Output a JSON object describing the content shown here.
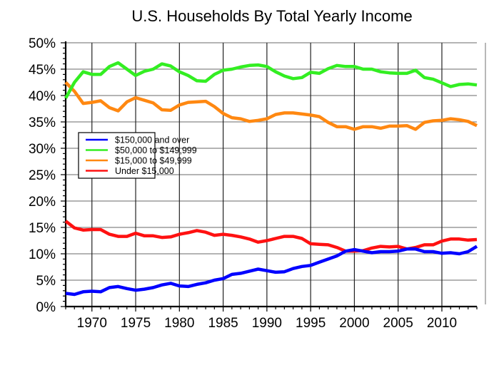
{
  "chart_data": {
    "type": "line",
    "title": "U.S. Households By Total Yearly Income",
    "xlabel": "",
    "ylabel": "",
    "xlim": [
      1967,
      2014
    ],
    "ylim": [
      0,
      50
    ],
    "x_ticks": [
      "1970",
      "1975",
      "1980",
      "1985",
      "1990",
      "1995",
      "2000",
      "2005",
      "2010"
    ],
    "y_ticks": [
      "0%",
      "5%",
      "10%",
      "15%",
      "20%",
      "25%",
      "30%",
      "35%",
      "40%",
      "45%",
      "50%"
    ],
    "grid": true,
    "legend_position": "center-left",
    "x": [
      1967,
      1968,
      1969,
      1970,
      1971,
      1972,
      1973,
      1974,
      1975,
      1976,
      1977,
      1978,
      1979,
      1980,
      1981,
      1982,
      1983,
      1984,
      1985,
      1986,
      1987,
      1988,
      1989,
      1990,
      1991,
      1992,
      1993,
      1994,
      1995,
      1996,
      1997,
      1998,
      1999,
      2000,
      2001,
      2002,
      2003,
      2004,
      2005,
      2006,
      2007,
      2008,
      2009,
      2010,
      2011,
      2012,
      2013,
      2014
    ],
    "series": [
      {
        "name": "$150,000 and over",
        "color": "#0000ff",
        "values": [
          2.5,
          2.3,
          2.8,
          2.9,
          2.8,
          3.6,
          3.8,
          3.4,
          3.1,
          3.3,
          3.6,
          4.1,
          4.4,
          3.9,
          3.8,
          4.2,
          4.5,
          5.0,
          5.3,
          6.1,
          6.3,
          6.7,
          7.1,
          6.8,
          6.5,
          6.6,
          7.2,
          7.6,
          7.8,
          8.4,
          9.0,
          9.6,
          10.5,
          10.8,
          10.5,
          10.2,
          10.4,
          10.4,
          10.5,
          10.9,
          10.9,
          10.4,
          10.4,
          10.1,
          10.2,
          10.0,
          10.4,
          11.4
        ]
      },
      {
        "name": "$50,000 to $149,999",
        "color": "#33ee22",
        "values": [
          39.5,
          42.5,
          44.5,
          44.0,
          44.0,
          45.5,
          46.2,
          45.0,
          43.8,
          44.6,
          45.0,
          46.0,
          45.6,
          44.5,
          43.8,
          42.8,
          42.7,
          44.0,
          44.8,
          45.0,
          45.4,
          45.7,
          45.8,
          45.5,
          44.5,
          43.7,
          43.2,
          43.4,
          44.4,
          44.2,
          45.1,
          45.7,
          45.5,
          45.5,
          45.0,
          45.0,
          44.5,
          44.3,
          44.2,
          44.2,
          44.8,
          43.4,
          43.1,
          42.4,
          41.7,
          42.1,
          42.2,
          42.0
        ]
      },
      {
        "name": "$15,000 to $49,999",
        "color": "#ff8811",
        "values": [
          42.5,
          40.8,
          38.5,
          38.7,
          39.0,
          37.7,
          37.1,
          38.8,
          39.6,
          39.1,
          38.6,
          37.3,
          37.2,
          38.2,
          38.7,
          38.8,
          38.9,
          37.9,
          36.6,
          35.8,
          35.6,
          35.1,
          35.3,
          35.6,
          36.4,
          36.7,
          36.7,
          36.5,
          36.3,
          36.0,
          34.9,
          34.1,
          34.1,
          33.6,
          34.1,
          34.1,
          33.8,
          34.2,
          34.2,
          34.3,
          33.6,
          34.9,
          35.2,
          35.3,
          35.6,
          35.4,
          35.1,
          34.3
        ]
      },
      {
        "name": "Under $15,000",
        "color": "#ff1111",
        "values": [
          16.2,
          14.9,
          14.5,
          14.6,
          14.6,
          13.7,
          13.3,
          13.3,
          13.9,
          13.4,
          13.4,
          13.1,
          13.2,
          13.7,
          14.0,
          14.4,
          14.1,
          13.5,
          13.7,
          13.5,
          13.2,
          12.8,
          12.2,
          12.5,
          12.9,
          13.3,
          13.3,
          12.9,
          11.9,
          11.8,
          11.7,
          11.2,
          10.5,
          10.5,
          10.6,
          11.1,
          11.4,
          11.3,
          11.4,
          10.9,
          11.2,
          11.7,
          11.7,
          12.4,
          12.8,
          12.8,
          12.6,
          12.7
        ]
      }
    ]
  }
}
